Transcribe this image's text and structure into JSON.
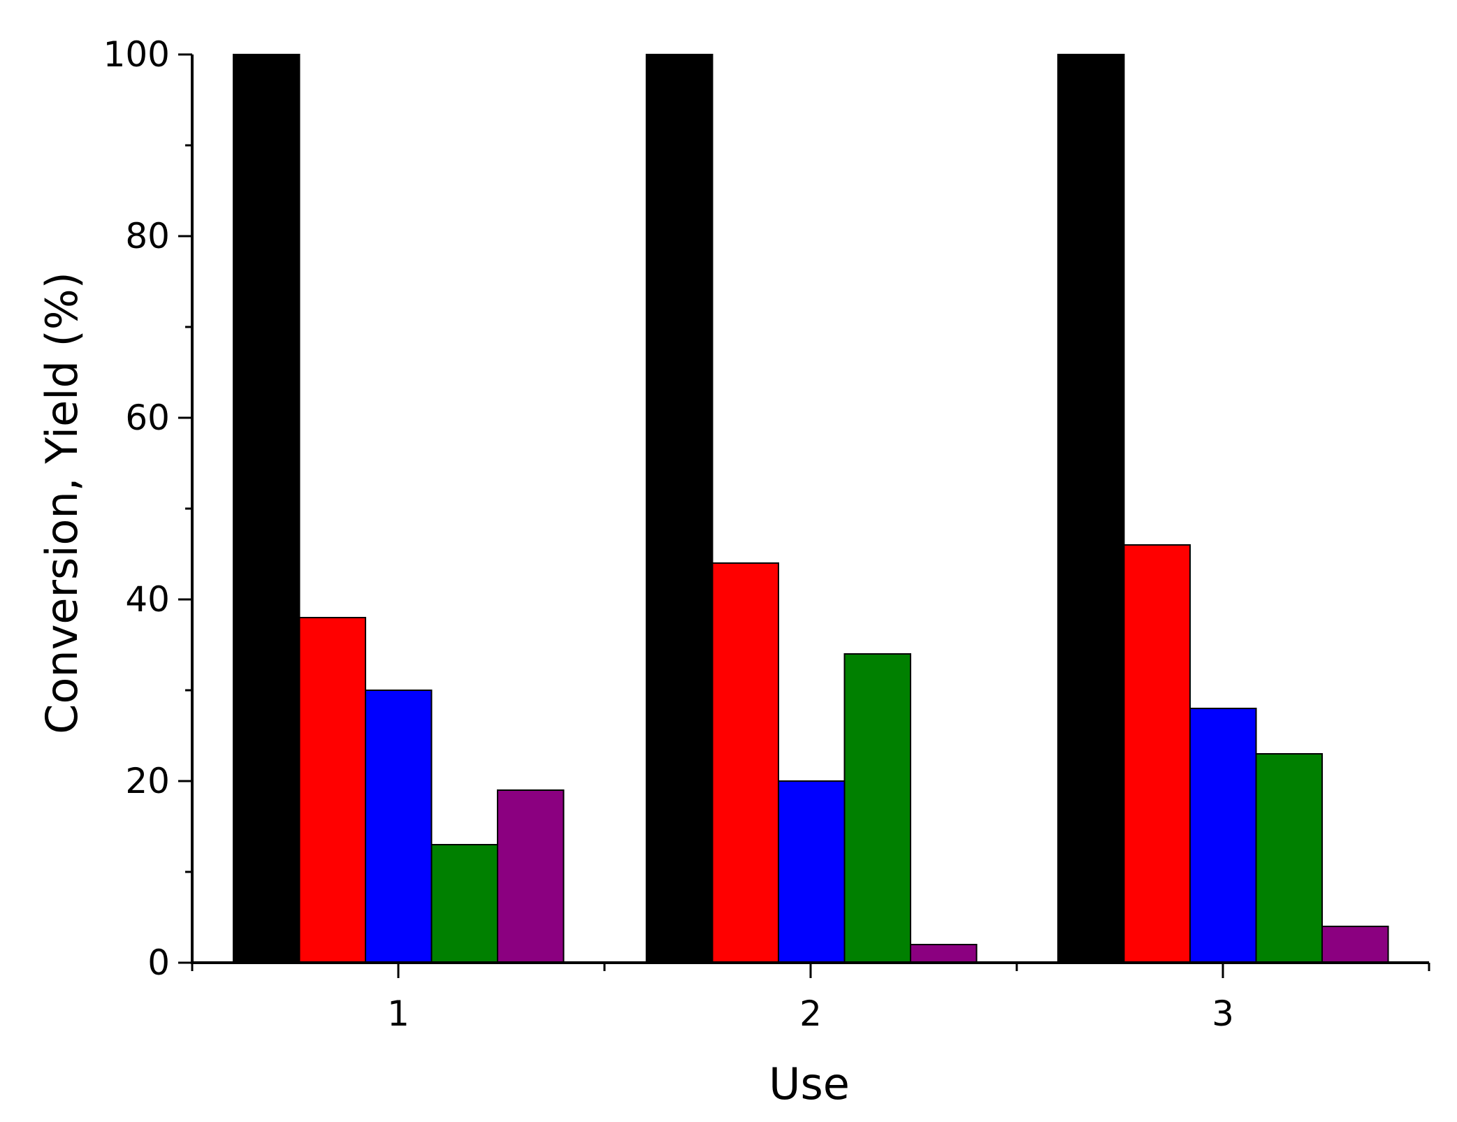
{
  "chart_data": {
    "type": "bar",
    "title": "",
    "xlabel": "Use",
    "ylabel": "Conversion, Yield (%)",
    "categories": [
      "1",
      "2",
      "3"
    ],
    "ylim": [
      0,
      100
    ],
    "yticks": [
      0,
      20,
      40,
      60,
      80,
      100
    ],
    "grid": false,
    "legend": "none",
    "series": [
      {
        "color": "#000000",
        "values": [
          100,
          100,
          100
        ]
      },
      {
        "color": "#ff0000",
        "values": [
          38,
          44,
          46
        ]
      },
      {
        "color": "#0000ff",
        "values": [
          30,
          20,
          28
        ]
      },
      {
        "color": "#008000",
        "values": [
          13,
          34,
          23
        ]
      },
      {
        "color": "#8b0080",
        "values": [
          19,
          2,
          4
        ]
      }
    ]
  }
}
